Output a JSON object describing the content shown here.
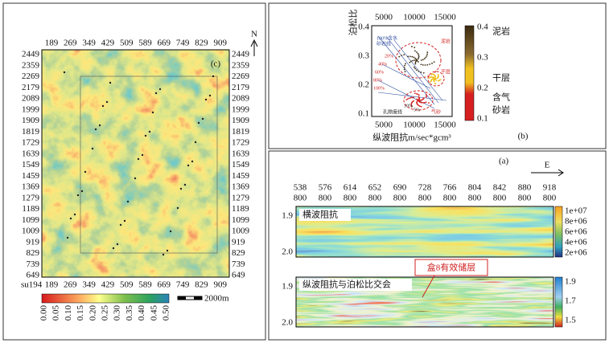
{
  "panel_c": {
    "label": "(c)",
    "north": "N",
    "top_ticks": [
      "189",
      "269",
      "349",
      "429",
      "509",
      "589",
      "669",
      "749",
      "829",
      "909"
    ],
    "left_ticks": [
      "2449",
      "2359",
      "2269",
      "2179",
      "2089",
      "1999",
      "1909",
      "1819",
      "1729",
      "1639",
      "1549",
      "1459",
      "1369",
      "1279",
      "1189",
      "1099",
      "1009",
      "919",
      "829",
      "739",
      "649"
    ],
    "bottom_corner": "su194",
    "colorbar_ticks": [
      "0.00",
      "0.05",
      "0.10",
      "0.15",
      "0.20",
      "0.25",
      "0.30",
      "0.35",
      "0.40",
      "0.45",
      "0.50"
    ],
    "scale": "2000m"
  },
  "panel_b": {
    "label": "(b)",
    "y_label": "泊松比",
    "x_label": "纵波阻抗m/sec*gcm³",
    "x_ticks": [
      "5000",
      "10000",
      "15000"
    ],
    "y_ticks": [
      "0.4",
      "0.3",
      "0.2",
      "0.1"
    ],
    "colorbar_ticks": [
      "0.4",
      "0.3",
      "0.2",
      "0.1"
    ],
    "legend": [
      "泥岩",
      "干层",
      "含气",
      "砂岩"
    ],
    "annotations": [
      "泥岩",
      "干层",
      "气砂",
      "100%含水",
      "砂岩线",
      "孔隙度线",
      "20%",
      "40%",
      "60%",
      "80%",
      "100%",
      "10%",
      "5%"
    ]
  },
  "panel_a": {
    "label": "(a)",
    "direction": "E",
    "traces": [
      "538",
      "576",
      "614",
      "652",
      "690",
      "728",
      "766",
      "804",
      "842",
      "880",
      "918"
    ],
    "lines": "800",
    "top": {
      "title": "横波阻抗",
      "y_ticks": [
        "1.9",
        "2.0"
      ],
      "colorbar_ticks": [
        "1e+07",
        "8e+06",
        "6e+06",
        "4e+06",
        "2e+06"
      ]
    },
    "bottom": {
      "title": "纵波阻抗与泊松比交会",
      "y_ticks": [
        "1.9",
        "2.0"
      ],
      "colorbar_ticks": [
        "1.9",
        "1.7",
        "1.5"
      ],
      "callout": "盒8有效储层"
    }
  }
}
